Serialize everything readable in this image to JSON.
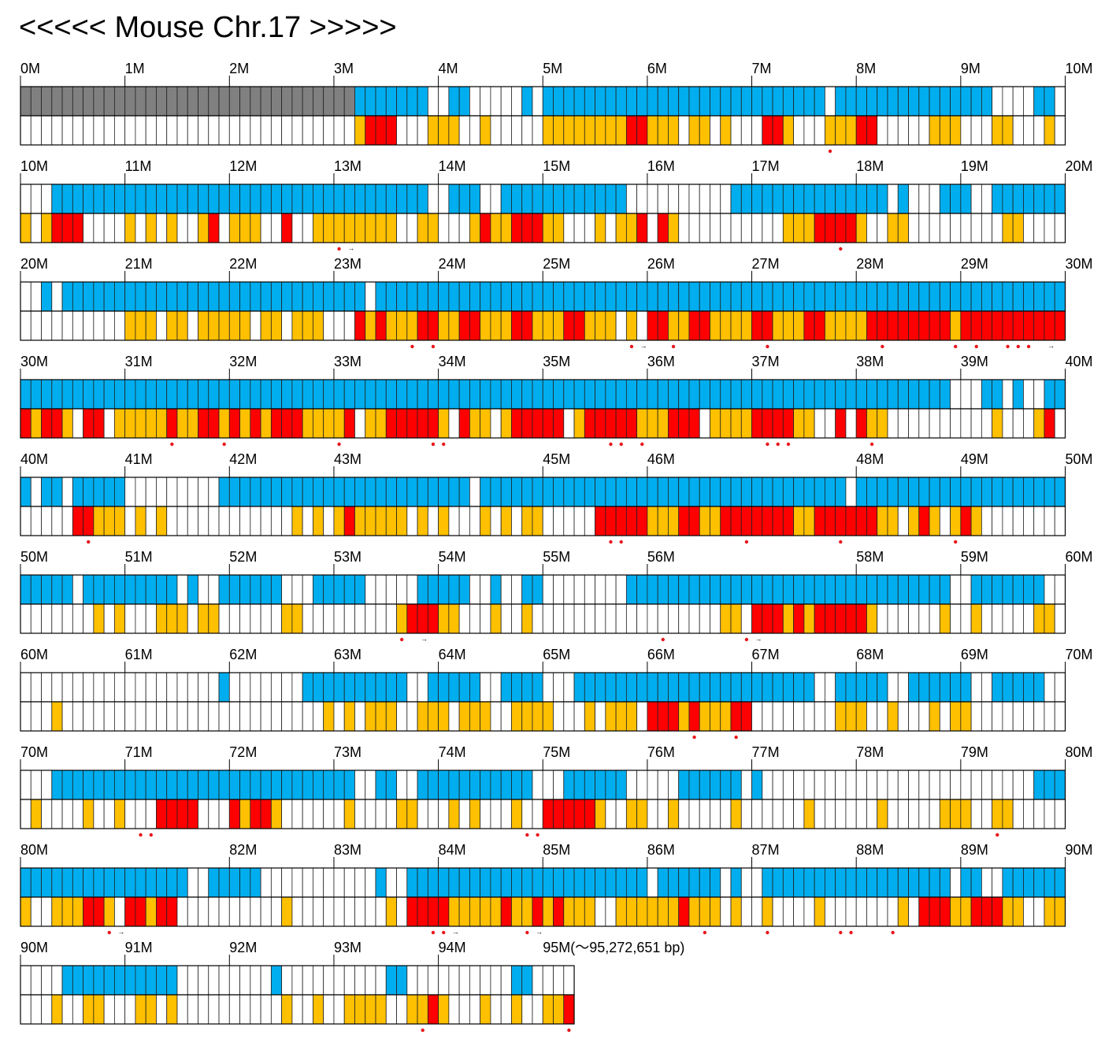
{
  "title": "<<<<< Mouse Chr.17 >>>>>",
  "legend_colors": {
    "gray": "#808080",
    "blue": "#00AEEF",
    "orange": "#FFC000",
    "red": "#FF0000",
    "marker": "#E8151B"
  },
  "end_label": "95M(〜95,272,651 bp)",
  "rows": [
    {
      "labels": [
        "0M",
        "1M",
        "2M",
        "3M",
        "4M",
        "5M",
        "6M",
        "7M",
        "8M",
        "9M",
        "10M"
      ],
      "cells": 100,
      "top": "GGGGGGGGGGGGGGGGGGGGGGGGGGGGGGGGBBBBBBB..BB.....B.BBBBBBBBBBBBBBBBBBBBBBBBBBB.BBBBBBBBBBBBBBB....BB",
      "bottom": "................................ORRS...OOO..O.....OOOOOOOORSOOO.OO.O...RSO...OOORR.....OOO...OO...O..O",
      "markers": [
        77
      ],
      "arrows": []
    },
    {
      "labels": [
        "10M",
        "11M",
        "12M",
        "13M",
        "14M",
        "15M",
        "16M",
        "17M",
        "18M",
        "19M",
        "20M"
      ],
      "cells": 100,
      "top": "...BBBBBBBBBBBBBBBBBBBBBBBBBBBBBBBBBBBB..BBB..BBBBBBBBBBBB..........BBBBBBBBBBBBBBB.B...BBB..BBBBBBB",
      "bottom": "O.ORRR....O.O.O..OR.OOO..R..OOOOOOOO..OO...OROORRROO...O.OOR.RO..........OOORRRRO..OO.........OO......",
      "markers": [
        30,
        78
      ],
      "arrows": [
        31
      ]
    },
    {
      "labels": [
        "20M",
        "21M",
        "22M",
        "23M",
        "24M",
        "25M",
        "26M",
        "27M",
        "28M",
        "29M",
        "30M"
      ],
      "cells": 100,
      "top": "..B.BBBBBBBBBBBBBBBBBBBBBBBBBBBBB.BBBBBBBBBBBBBBBBBBBBBBBBBBBBBBBBBBBBBBBBBBBBBBBBBBBBBBBBBBBBBBBBBB",
      "bottom": "..........OOO.OO.OOOOO.OO.OOO...ROROOORROORROOORROOORROOO.O.RROORROOOORROOORROOOORRRRRRRRORRRRRRRRRRRR",
      "markers": [
        37,
        39,
        58,
        62,
        71,
        82,
        89,
        91,
        94,
        95,
        96
      ],
      "arrows": [
        59,
        98
      ]
    },
    {
      "labels": [
        "30M",
        "31M",
        "32M",
        "33M",
        "34M",
        "35M",
        "36M",
        "37M",
        "38M",
        "39M",
        "40M"
      ],
      "cells": 100,
      "top": "BBBBBBBBBBBBBBBBBBBBBBBBBBBBBBBBBBBBBBBBBBBBBBBBBBBBBBBBBBBBBBBBBBBBBBBBBBBBBBBBBBBBBBBBB...BB.B..BB.B",
      "bottom": "RORRO.RR.OOOOOROORRORORORRROOOOR.OORRRRRO.ROO.ORRRRR.ORRRRROOORRR.OOOORRRROO..R.ROO..........O...OR",
      "markers": [
        14,
        19,
        30,
        39,
        40,
        56,
        57,
        59,
        71,
        72,
        73,
        81
      ],
      "arrows": []
    },
    {
      "labels": [
        "40M",
        "41M",
        "",
        "42M",
        "43M",
        "",
        "45M",
        "46M",
        "",
        "48M",
        "49M",
        "50M"
      ],
      "label_idx": [
        0,
        1,
        -1,
        2,
        3,
        -1,
        5,
        6,
        -1,
        8,
        9,
        10
      ],
      "cells": 100,
      "top": "B.BB.BBBBB.........BBBBBBBBBBBBBBBBBBBBBBBB.BBBBBBBBBBBBBBBBBBBBBBBBBBBBBBBBBBB.BBBBBBBBBBBBBBBBBBBBBBBB..BBB.BBBBBBB",
      "bottom": ".....RROOO.O.O............O.O.OROOOOO.O.O...O.O.OO.....RRRRROOORROORRRRRRROORRRRRROO.ORO.ORO.......",
      "markers": [
        6,
        56,
        57,
        69,
        78,
        89
      ],
      "arrows": []
    },
    {
      "labels": [
        "50M",
        "51M",
        "52M",
        "53M",
        "54M",
        "55M",
        "56M",
        "",
        "58M",
        "59M",
        "60M"
      ],
      "label_idx": [
        0,
        1,
        2,
        3,
        4,
        5,
        6,
        -1,
        8,
        9,
        10
      ],
      "cells": 100,
      "top": "BBBBB.BBBBBBBBB.B..BBBBBB...BBBBB.....BBBBB..B..BB........BBBBBBBBBBBBBBBBBBBBBBBBBBBBBBB..BBBBBBB..BBBB....B",
      "bottom": ".......O.O...OOO.OO......OO.........ORRROO...O..O..................OO.RRRORORRRRRO......O..O.....OO..OO.....",
      "markers": [
        36,
        61,
        69
      ],
      "arrows": [
        38,
        70
      ]
    },
    {
      "labels": [
        "60M",
        "61M",
        "62M",
        "63M",
        "64M",
        "65M",
        "66M",
        "67M",
        "68M",
        "69M",
        "70M"
      ],
      "cells": 100,
      "top": "...................B.......BBBBBBBBBB..BBBBB..BBBB...BBBBBBBBBBBBBBBBBBBBBBB..BBBBB..BBBBBB..BBBBB.",
      "bottom": "...O.........................O.O.OOO..OOO.OOO..OOOO...O.OOO.RRROROOORR........OOO..O...O.OO.........OOOO",
      "markers": [
        64,
        68
      ],
      "arrows": []
    },
    {
      "labels": [
        "70M",
        "71M",
        "72M",
        "73M",
        "74M",
        "75M",
        "76M",
        "77M",
        "78M",
        "79M",
        "80M"
      ],
      "cells": 100,
      "top": "...BBBBBBBBBBBBBBBBBBBBBBBBBBBBB..BB..BBBBBBBBBBB...BBBBBB.....BBBBBB.B..........................BBBBBBBBBB..BBB",
      "bottom": ".O....O..O...RRRR...RORRO......O....OO...O.O...O..RRRRRO..OO..O.....O......O......O.....OOO..OO.....OOROORO",
      "markers": [
        11,
        12,
        48,
        49,
        93
      ],
      "arrows": []
    },
    {
      "labels": [
        "80M",
        "",
        "82M",
        "83M",
        "84M",
        "85M",
        "86M",
        "87M",
        "88M",
        "89M",
        "90M"
      ],
      "label_idx": [
        0,
        -1,
        2,
        3,
        4,
        5,
        6,
        7,
        8,
        9,
        10
      ],
      "cells": 100,
      "top": "BBBBBBBBBBBBBBBB..BBBBB...........B..BBBBBBBBBBBBBBBBBBBBBBB.BBBBBB.B..BBBBBBBBBBBBBBBBBB.BB..BBBBBBBBB..BBBB.",
      "bottom": "O..OOORRO.RRORR..........O.........O.RRRROOOOOROOROROOO..OOOOOOROOO.O..O....O.......O.RRROORRROO..OOOO.O.",
      "markers": [
        8,
        39,
        40,
        48,
        65,
        71,
        78,
        79,
        83
      ],
      "arrows": [
        9,
        41,
        49
      ]
    },
    {
      "labels": [
        "90M",
        "91M",
        "92M",
        "93M",
        "94M",
        ""
      ],
      "label_idx": [
        0,
        1,
        2,
        3,
        4,
        5
      ],
      "cells": 53,
      "top": "....BBBBBBBBBBB.........B..........BB..........BB",
      "bottom": "...O..OO...OO.O..........O..O..OOOO..OORO...O..O..OOR",
      "markers": [
        38,
        52
      ],
      "arrows": []
    }
  ]
}
